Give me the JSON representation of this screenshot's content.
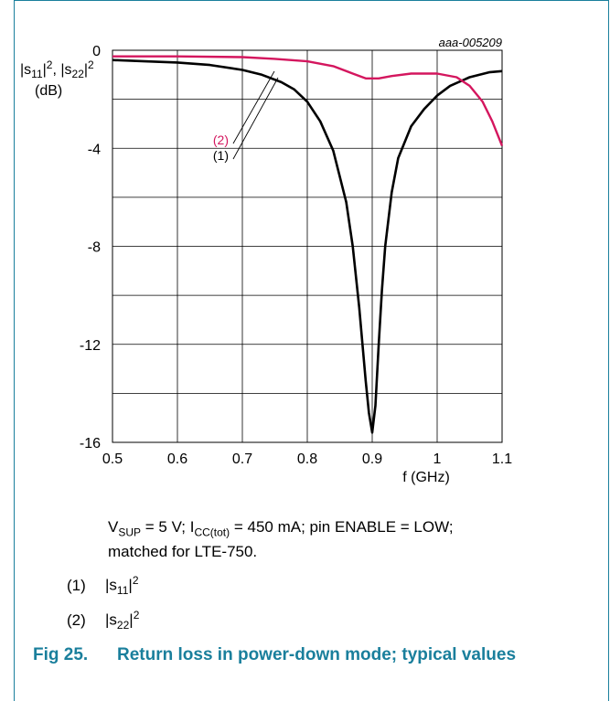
{
  "chart_data": {
    "type": "line",
    "figure_id": "aaa-005209",
    "ylabel_parts": [
      "|s",
      "11",
      "|",
      "2",
      ", |s",
      "22",
      "|",
      "2"
    ],
    "yunit": "(dB)",
    "xlabel": "f (GHz)",
    "xlim": [
      0.5,
      1.1
    ],
    "ylim": [
      -16,
      0
    ],
    "xticks": [
      0.5,
      0.6,
      0.7,
      0.8,
      0.9,
      1,
      1.1
    ],
    "xtick_labels": [
      "0.5",
      "0.6",
      "0.7",
      "0.8",
      "0.9",
      "1",
      "1.1"
    ],
    "yticks": [
      0,
      -4,
      -8,
      -12,
      -16
    ],
    "ytick_labels": [
      "0",
      "-4",
      "-8",
      "-12",
      "-16"
    ],
    "grid": true,
    "series": [
      {
        "name": "(1)",
        "color": "#000000",
        "x": [
          0.5,
          0.55,
          0.6,
          0.65,
          0.7,
          0.73,
          0.76,
          0.78,
          0.8,
          0.82,
          0.84,
          0.86,
          0.87,
          0.88,
          0.89,
          0.895,
          0.9,
          0.905,
          0.91,
          0.915,
          0.92,
          0.93,
          0.94,
          0.96,
          0.98,
          1.0,
          1.02,
          1.05,
          1.08,
          1.1
        ],
        "y": [
          -0.4,
          -0.45,
          -0.5,
          -0.6,
          -0.8,
          -1.0,
          -1.3,
          -1.6,
          -2.1,
          -2.9,
          -4.1,
          -6.2,
          -8.0,
          -10.5,
          -13.5,
          -14.8,
          -15.6,
          -14.5,
          -12.0,
          -9.8,
          -8.0,
          -5.8,
          -4.4,
          -3.1,
          -2.4,
          -1.85,
          -1.45,
          -1.1,
          -0.9,
          -0.85
        ]
      },
      {
        "name": "(2)",
        "color": "#d4165e",
        "x": [
          0.5,
          0.6,
          0.7,
          0.75,
          0.8,
          0.84,
          0.87,
          0.89,
          0.91,
          0.93,
          0.96,
          1.0,
          1.03,
          1.05,
          1.07,
          1.085,
          1.1
        ],
        "y": [
          -0.25,
          -0.25,
          -0.28,
          -0.35,
          -0.45,
          -0.65,
          -0.95,
          -1.15,
          -1.15,
          -1.05,
          -0.95,
          -0.95,
          -1.1,
          -1.45,
          -2.1,
          -2.9,
          -3.9
        ]
      }
    ],
    "annotations": [
      {
        "label": "(2)",
        "color": "#d4165e",
        "x": 0.68,
        "y": -3.6
      },
      {
        "label": "(1)",
        "color": "#000000",
        "x": 0.68,
        "y": -4.1
      }
    ]
  },
  "conditions": {
    "v": "V",
    "v_sub": "SUP",
    "v_val": " = 5 V; I",
    "i_sub": "CC(tot)",
    "rest": " = 450 mA; pin ENABLE = LOW;",
    "line2": "matched for LTE-750."
  },
  "legend": [
    {
      "num": "(1)",
      "pre": "|s",
      "sub": "11",
      "mid": "|",
      "sup": "2"
    },
    {
      "num": "(2)",
      "pre": "|s",
      "sub": "22",
      "mid": "|",
      "sup": "2"
    }
  ],
  "caption": {
    "label": "Fig 25.",
    "text": "Return loss in power-down mode; typical values"
  }
}
